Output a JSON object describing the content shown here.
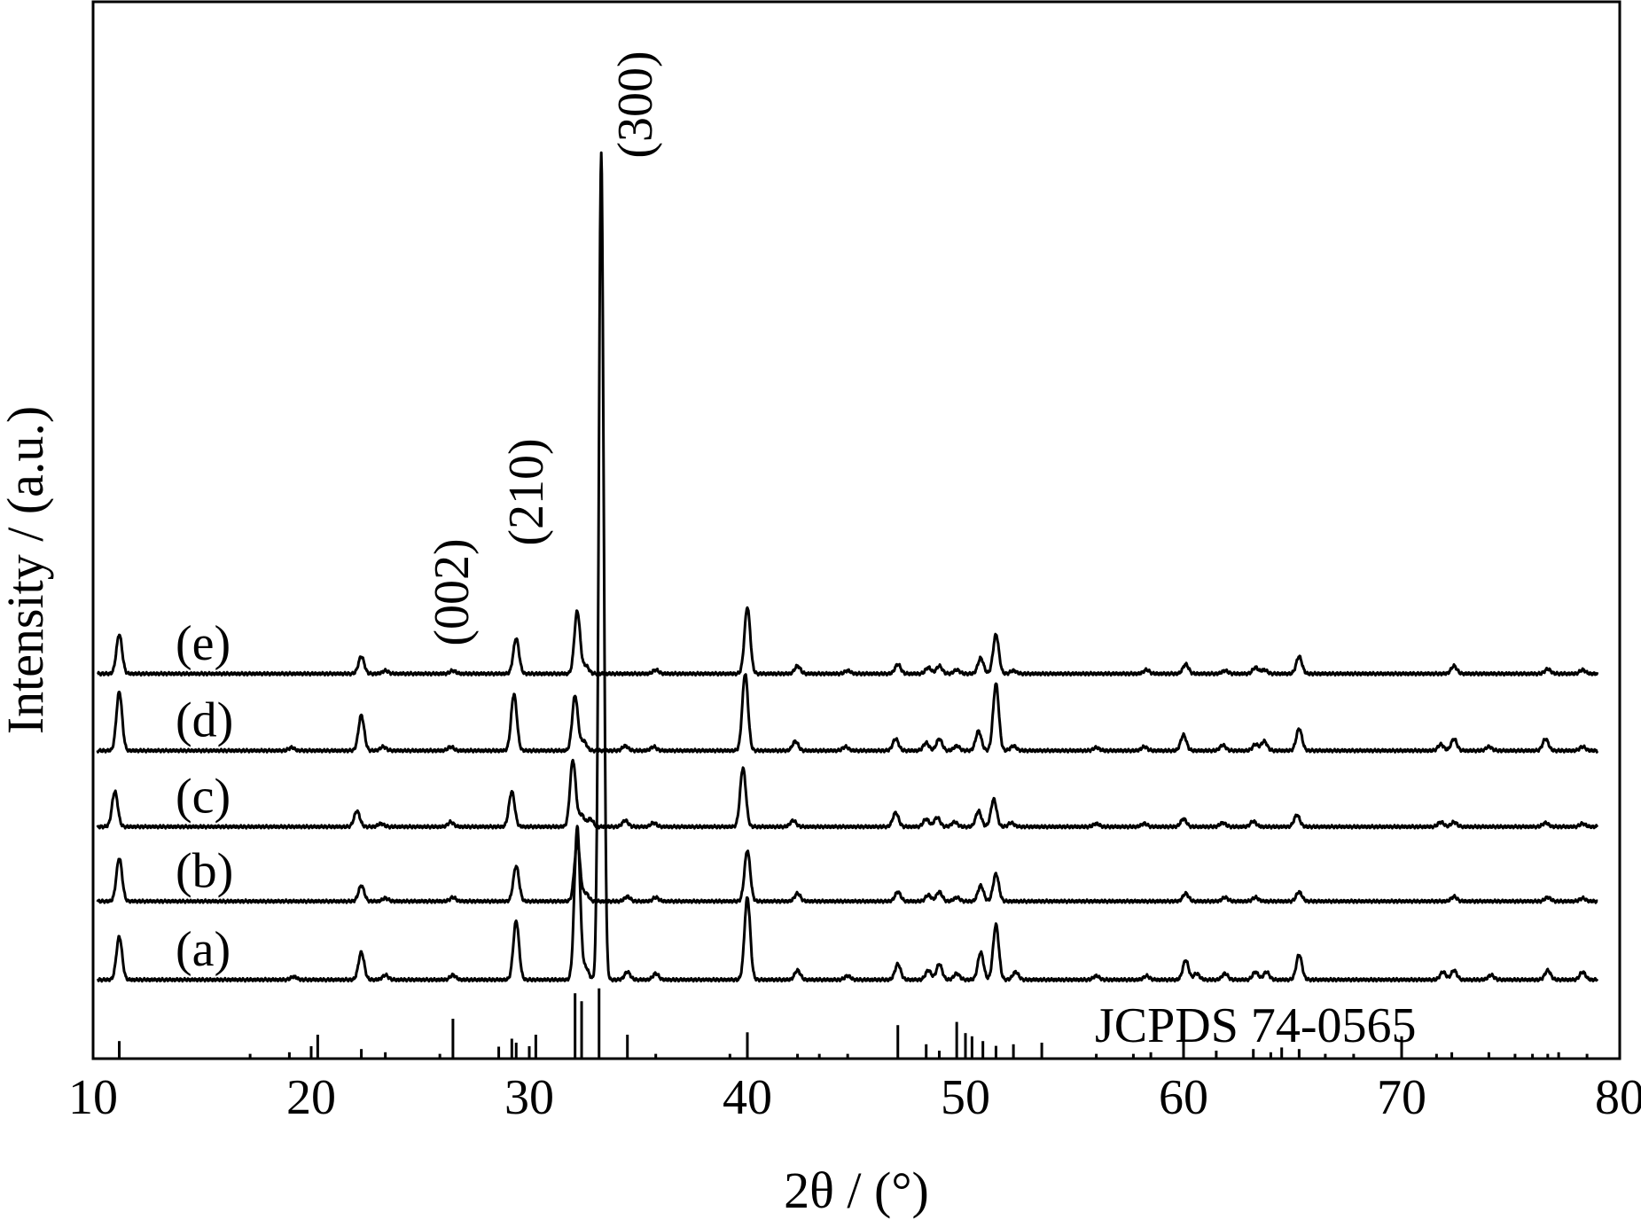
{
  "chart_data": {
    "type": "line",
    "title": "",
    "xlabel": "2θ / (°)",
    "ylabel": "Intensity / (a.u.)",
    "xlim": [
      10,
      80
    ],
    "x_ticks": [
      10,
      20,
      30,
      40,
      50,
      60,
      70,
      80
    ],
    "y_ticks_shown": false,
    "grid": false,
    "legend": "none",
    "reference_label": "JCPDS 74-0565",
    "reference_peaks": [
      {
        "x": 11.2,
        "h": 0.22
      },
      {
        "x": 17.2,
        "h": 0.06
      },
      {
        "x": 19.0,
        "h": 0.08
      },
      {
        "x": 20.3,
        "h": 0.3
      },
      {
        "x": 22.3,
        "h": 0.12
      },
      {
        "x": 23.4,
        "h": 0.08
      },
      {
        "x": 25.9,
        "h": 0.06
      },
      {
        "x": 26.5,
        "h": 0.5
      },
      {
        "x": 28.6,
        "h": 0.15
      },
      {
        "x": 29.2,
        "h": 0.25
      },
      {
        "x": 29.4,
        "h": 0.2
      },
      {
        "x": 30.3,
        "h": 0.3
      },
      {
        "x": 32.1,
        "h": 0.82
      },
      {
        "x": 32.4,
        "h": 0.72
      },
      {
        "x": 33.2,
        "h": 0.88
      },
      {
        "x": 34.5,
        "h": 0.3
      },
      {
        "x": 35.8,
        "h": 0.06
      },
      {
        "x": 39.2,
        "h": 0.06
      },
      {
        "x": 40.0,
        "h": 0.33
      },
      {
        "x": 42.3,
        "h": 0.06
      },
      {
        "x": 43.3,
        "h": 0.06
      },
      {
        "x": 44.6,
        "h": 0.06
      },
      {
        "x": 46.9,
        "h": 0.42
      },
      {
        "x": 48.2,
        "h": 0.18
      },
      {
        "x": 48.8,
        "h": 0.1
      },
      {
        "x": 49.6,
        "h": 0.46
      },
      {
        "x": 50.0,
        "h": 0.32
      },
      {
        "x": 50.3,
        "h": 0.28
      },
      {
        "x": 50.8,
        "h": 0.22
      },
      {
        "x": 51.4,
        "h": 0.16
      },
      {
        "x": 52.2,
        "h": 0.18
      },
      {
        "x": 53.5,
        "h": 0.2
      },
      {
        "x": 56.0,
        "h": 0.06
      },
      {
        "x": 57.7,
        "h": 0.06
      },
      {
        "x": 58.5,
        "h": 0.08
      },
      {
        "x": 60.0,
        "h": 0.3
      },
      {
        "x": 61.5,
        "h": 0.1
      },
      {
        "x": 63.2,
        "h": 0.12
      },
      {
        "x": 64.0,
        "h": 0.08
      },
      {
        "x": 64.5,
        "h": 0.14
      },
      {
        "x": 65.3,
        "h": 0.12
      },
      {
        "x": 66.5,
        "h": 0.06
      },
      {
        "x": 67.8,
        "h": 0.06
      },
      {
        "x": 70.0,
        "h": 0.28
      },
      {
        "x": 71.6,
        "h": 0.06
      },
      {
        "x": 72.3,
        "h": 0.08
      },
      {
        "x": 74.0,
        "h": 0.08
      },
      {
        "x": 75.2,
        "h": 0.06
      },
      {
        "x": 76.0,
        "h": 0.06
      },
      {
        "x": 76.7,
        "h": 0.06
      },
      {
        "x": 77.2,
        "h": 0.08
      },
      {
        "x": 78.5,
        "h": 0.06
      }
    ],
    "hkl_annotations": [
      {
        "label": "(002)",
        "x": 26.5
      },
      {
        "label": "(210)",
        "x": 29.3
      },
      {
        "label": "(300)",
        "x": 33.3
      }
    ],
    "series": [
      {
        "name": "(a)",
        "baseline": 0.0,
        "peaks": [
          {
            "x": 11.2,
            "h": 0.55
          },
          {
            "x": 19.2,
            "h": 0.04
          },
          {
            "x": 22.3,
            "h": 0.35
          },
          {
            "x": 23.4,
            "h": 0.06
          },
          {
            "x": 26.5,
            "h": 0.06
          },
          {
            "x": 29.4,
            "h": 0.75
          },
          {
            "x": 32.2,
            "h": 1.95
          },
          {
            "x": 32.6,
            "h": 0.15
          },
          {
            "x": 33.3,
            "h": 10.55
          },
          {
            "x": 34.5,
            "h": 0.1
          },
          {
            "x": 35.8,
            "h": 0.08
          },
          {
            "x": 40.0,
            "h": 1.05
          },
          {
            "x": 42.3,
            "h": 0.12
          },
          {
            "x": 44.6,
            "h": 0.05
          },
          {
            "x": 46.9,
            "h": 0.2
          },
          {
            "x": 48.3,
            "h": 0.12
          },
          {
            "x": 48.8,
            "h": 0.2
          },
          {
            "x": 49.6,
            "h": 0.08
          },
          {
            "x": 50.7,
            "h": 0.35
          },
          {
            "x": 51.4,
            "h": 0.7
          },
          {
            "x": 52.3,
            "h": 0.1
          },
          {
            "x": 56.0,
            "h": 0.05
          },
          {
            "x": 58.3,
            "h": 0.05
          },
          {
            "x": 60.1,
            "h": 0.25
          },
          {
            "x": 60.6,
            "h": 0.08
          },
          {
            "x": 61.9,
            "h": 0.08
          },
          {
            "x": 63.3,
            "h": 0.1
          },
          {
            "x": 63.8,
            "h": 0.1
          },
          {
            "x": 65.3,
            "h": 0.32
          },
          {
            "x": 71.9,
            "h": 0.1
          },
          {
            "x": 72.4,
            "h": 0.12
          },
          {
            "x": 74.1,
            "h": 0.06
          },
          {
            "x": 76.7,
            "h": 0.12
          },
          {
            "x": 78.3,
            "h": 0.1
          }
        ]
      },
      {
        "name": "(b)",
        "baseline": 1.0,
        "peaks": [
          {
            "x": 11.2,
            "h": 0.55
          },
          {
            "x": 22.3,
            "h": 0.2
          },
          {
            "x": 23.4,
            "h": 0.04
          },
          {
            "x": 26.5,
            "h": 0.05
          },
          {
            "x": 29.4,
            "h": 0.45
          },
          {
            "x": 32.2,
            "h": 0.75
          },
          {
            "x": 32.6,
            "h": 0.1
          },
          {
            "x": 34.5,
            "h": 0.06
          },
          {
            "x": 35.8,
            "h": 0.05
          },
          {
            "x": 40.0,
            "h": 0.65
          },
          {
            "x": 42.3,
            "h": 0.1
          },
          {
            "x": 46.9,
            "h": 0.12
          },
          {
            "x": 48.3,
            "h": 0.08
          },
          {
            "x": 48.8,
            "h": 0.12
          },
          {
            "x": 49.6,
            "h": 0.05
          },
          {
            "x": 50.7,
            "h": 0.2
          },
          {
            "x": 51.4,
            "h": 0.35
          },
          {
            "x": 60.1,
            "h": 0.1
          },
          {
            "x": 61.9,
            "h": 0.05
          },
          {
            "x": 63.3,
            "h": 0.05
          },
          {
            "x": 65.3,
            "h": 0.12
          },
          {
            "x": 72.4,
            "h": 0.06
          },
          {
            "x": 76.7,
            "h": 0.05
          },
          {
            "x": 78.3,
            "h": 0.04
          }
        ]
      },
      {
        "name": "(c)",
        "baseline": 1.95,
        "peaks": [
          {
            "x": 11.0,
            "h": 0.45
          },
          {
            "x": 22.1,
            "h": 0.2
          },
          {
            "x": 23.2,
            "h": 0.04
          },
          {
            "x": 26.4,
            "h": 0.06
          },
          {
            "x": 29.2,
            "h": 0.45
          },
          {
            "x": 32.0,
            "h": 0.85
          },
          {
            "x": 32.4,
            "h": 0.15
          },
          {
            "x": 32.8,
            "h": 0.1
          },
          {
            "x": 34.4,
            "h": 0.08
          },
          {
            "x": 35.7,
            "h": 0.05
          },
          {
            "x": 39.8,
            "h": 0.75
          },
          {
            "x": 42.1,
            "h": 0.08
          },
          {
            "x": 46.8,
            "h": 0.18
          },
          {
            "x": 48.2,
            "h": 0.1
          },
          {
            "x": 48.7,
            "h": 0.12
          },
          {
            "x": 49.5,
            "h": 0.06
          },
          {
            "x": 50.6,
            "h": 0.2
          },
          {
            "x": 51.3,
            "h": 0.35
          },
          {
            "x": 52.1,
            "h": 0.05
          },
          {
            "x": 56.0,
            "h": 0.04
          },
          {
            "x": 58.2,
            "h": 0.04
          },
          {
            "x": 60.0,
            "h": 0.1
          },
          {
            "x": 61.8,
            "h": 0.05
          },
          {
            "x": 63.2,
            "h": 0.07
          },
          {
            "x": 65.2,
            "h": 0.15
          },
          {
            "x": 71.8,
            "h": 0.06
          },
          {
            "x": 72.4,
            "h": 0.06
          },
          {
            "x": 76.6,
            "h": 0.05
          },
          {
            "x": 78.3,
            "h": 0.04
          }
        ]
      },
      {
        "name": "(d)",
        "baseline": 2.92,
        "peaks": [
          {
            "x": 11.2,
            "h": 0.75
          },
          {
            "x": 19.1,
            "h": 0.04
          },
          {
            "x": 22.3,
            "h": 0.45
          },
          {
            "x": 23.3,
            "h": 0.05
          },
          {
            "x": 26.4,
            "h": 0.05
          },
          {
            "x": 29.3,
            "h": 0.72
          },
          {
            "x": 32.1,
            "h": 0.7
          },
          {
            "x": 32.5,
            "h": 0.12
          },
          {
            "x": 34.4,
            "h": 0.06
          },
          {
            "x": 35.7,
            "h": 0.05
          },
          {
            "x": 39.9,
            "h": 0.98
          },
          {
            "x": 42.2,
            "h": 0.12
          },
          {
            "x": 44.5,
            "h": 0.05
          },
          {
            "x": 46.8,
            "h": 0.15
          },
          {
            "x": 48.2,
            "h": 0.1
          },
          {
            "x": 48.8,
            "h": 0.15
          },
          {
            "x": 49.6,
            "h": 0.06
          },
          {
            "x": 50.6,
            "h": 0.25
          },
          {
            "x": 51.4,
            "h": 0.85
          },
          {
            "x": 52.2,
            "h": 0.06
          },
          {
            "x": 56.0,
            "h": 0.04
          },
          {
            "x": 58.2,
            "h": 0.05
          },
          {
            "x": 60.0,
            "h": 0.2
          },
          {
            "x": 61.8,
            "h": 0.07
          },
          {
            "x": 63.3,
            "h": 0.08
          },
          {
            "x": 63.7,
            "h": 0.12
          },
          {
            "x": 65.3,
            "h": 0.28
          },
          {
            "x": 71.8,
            "h": 0.08
          },
          {
            "x": 72.4,
            "h": 0.15
          },
          {
            "x": 74.0,
            "h": 0.05
          },
          {
            "x": 76.6,
            "h": 0.15
          },
          {
            "x": 78.3,
            "h": 0.05
          }
        ]
      },
      {
        "name": "(e)",
        "baseline": 3.9,
        "peaks": [
          {
            "x": 11.2,
            "h": 0.5
          },
          {
            "x": 22.3,
            "h": 0.22
          },
          {
            "x": 23.4,
            "h": 0.04
          },
          {
            "x": 26.5,
            "h": 0.04
          },
          {
            "x": 29.4,
            "h": 0.45
          },
          {
            "x": 32.2,
            "h": 0.8
          },
          {
            "x": 32.6,
            "h": 0.1
          },
          {
            "x": 35.8,
            "h": 0.05
          },
          {
            "x": 40.0,
            "h": 0.85
          },
          {
            "x": 42.3,
            "h": 0.1
          },
          {
            "x": 44.6,
            "h": 0.04
          },
          {
            "x": 46.9,
            "h": 0.12
          },
          {
            "x": 48.3,
            "h": 0.08
          },
          {
            "x": 48.8,
            "h": 0.1
          },
          {
            "x": 49.6,
            "h": 0.05
          },
          {
            "x": 50.7,
            "h": 0.2
          },
          {
            "x": 51.4,
            "h": 0.5
          },
          {
            "x": 52.2,
            "h": 0.04
          },
          {
            "x": 58.3,
            "h": 0.05
          },
          {
            "x": 60.1,
            "h": 0.12
          },
          {
            "x": 61.9,
            "h": 0.04
          },
          {
            "x": 63.3,
            "h": 0.08
          },
          {
            "x": 63.7,
            "h": 0.05
          },
          {
            "x": 65.3,
            "h": 0.22
          },
          {
            "x": 72.4,
            "h": 0.1
          },
          {
            "x": 76.7,
            "h": 0.06
          },
          {
            "x": 78.3,
            "h": 0.05
          }
        ]
      }
    ]
  }
}
